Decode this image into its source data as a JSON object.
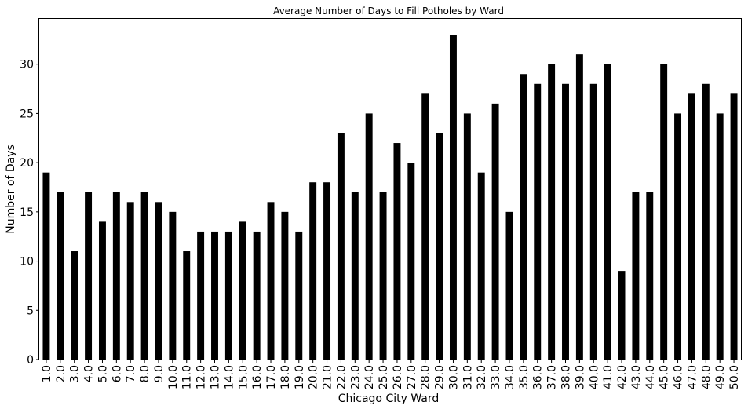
{
  "chart_data": {
    "type": "bar",
    "title": "Average Number of Days to Fill Potholes by Ward",
    "xlabel": "Chicago City Ward",
    "ylabel": "Number of Days",
    "ylim": [
      0,
      34.6
    ],
    "yticks": [
      0,
      5,
      10,
      15,
      20,
      25,
      30
    ],
    "bar_color": "#000000",
    "grid": false,
    "categories": [
      "1.0",
      "2.0",
      "3.0",
      "4.0",
      "5.0",
      "6.0",
      "7.0",
      "8.0",
      "9.0",
      "10.0",
      "11.0",
      "12.0",
      "13.0",
      "14.0",
      "15.0",
      "16.0",
      "17.0",
      "18.0",
      "19.0",
      "20.0",
      "21.0",
      "22.0",
      "23.0",
      "24.0",
      "25.0",
      "26.0",
      "27.0",
      "28.0",
      "29.0",
      "30.0",
      "31.0",
      "32.0",
      "33.0",
      "34.0",
      "35.0",
      "36.0",
      "37.0",
      "38.0",
      "39.0",
      "40.0",
      "41.0",
      "42.0",
      "43.0",
      "44.0",
      "45.0",
      "46.0",
      "47.0",
      "48.0",
      "49.0",
      "50.0"
    ],
    "values": [
      19,
      17,
      11,
      17,
      14,
      17,
      16,
      17,
      16,
      15,
      11,
      13,
      13,
      13,
      14,
      13,
      16,
      15,
      13,
      18,
      18,
      23,
      17,
      25,
      17,
      22,
      20,
      27,
      23,
      33,
      25,
      19,
      26,
      15,
      29,
      28,
      30,
      28,
      31,
      28,
      30,
      9,
      17,
      17,
      30,
      25,
      27,
      28,
      25,
      27
    ]
  }
}
